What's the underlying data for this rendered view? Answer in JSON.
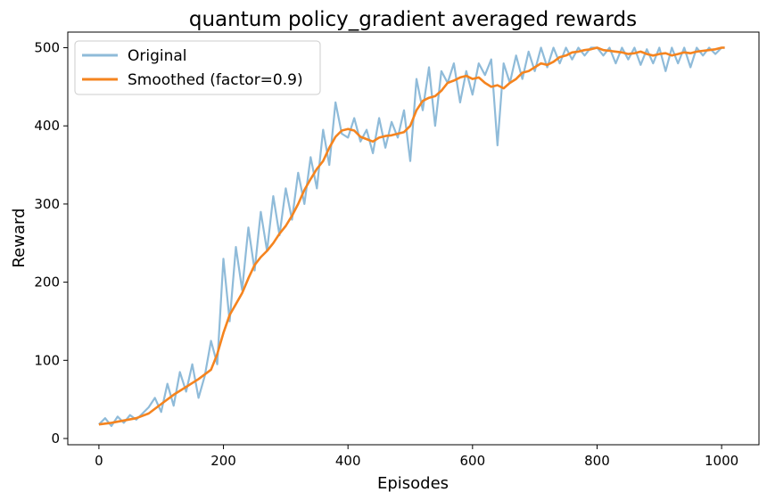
{
  "chart_data": {
    "type": "line",
    "title": "quantum policy_gradient averaged rewards",
    "xlabel": "Episodes",
    "ylabel": "Reward",
    "xlim": [
      -50,
      1060
    ],
    "ylim": [
      -8,
      520
    ],
    "xticks": [
      0,
      200,
      400,
      600,
      800,
      1000
    ],
    "yticks": [
      0,
      100,
      200,
      300,
      400,
      500
    ],
    "grid": false,
    "legend_position": "top-left",
    "series": [
      {
        "name": "Original",
        "color": "#8fbbd9",
        "x": [
          0,
          10,
          20,
          30,
          40,
          50,
          60,
          70,
          80,
          90,
          100,
          110,
          120,
          130,
          140,
          150,
          160,
          170,
          180,
          190,
          200,
          210,
          220,
          230,
          240,
          250,
          260,
          270,
          280,
          290,
          300,
          310,
          320,
          330,
          340,
          350,
          360,
          370,
          380,
          390,
          400,
          410,
          420,
          430,
          440,
          450,
          460,
          470,
          480,
          490,
          500,
          510,
          520,
          530,
          540,
          550,
          560,
          570,
          580,
          590,
          600,
          610,
          620,
          630,
          640,
          650,
          660,
          670,
          680,
          690,
          700,
          710,
          720,
          730,
          740,
          750,
          760,
          770,
          780,
          790,
          800,
          810,
          820,
          830,
          840,
          850,
          860,
          870,
          880,
          890,
          900,
          910,
          920,
          930,
          940,
          950,
          960,
          970,
          980,
          990,
          1000,
          1005
        ],
        "values": [
          18,
          26,
          16,
          28,
          20,
          30,
          24,
          32,
          40,
          52,
          34,
          70,
          42,
          85,
          60,
          95,
          52,
          80,
          125,
          95,
          230,
          150,
          245,
          190,
          270,
          215,
          290,
          240,
          310,
          260,
          320,
          280,
          340,
          300,
          360,
          320,
          395,
          350,
          430,
          390,
          385,
          410,
          380,
          395,
          365,
          410,
          372,
          405,
          385,
          420,
          355,
          460,
          420,
          475,
          400,
          470,
          455,
          480,
          430,
          470,
          440,
          480,
          465,
          485,
          375,
          480,
          455,
          490,
          460,
          495,
          470,
          500,
          475,
          500,
          480,
          500,
          485,
          500,
          490,
          500,
          500,
          490,
          500,
          480,
          500,
          485,
          500,
          478,
          498,
          480,
          500,
          470,
          500,
          480,
          500,
          475,
          500,
          490,
          500,
          492,
          500,
          500
        ]
      },
      {
        "name": "Smoothed (factor=0.9)",
        "color": "#f5841f",
        "x": [
          0,
          20,
          40,
          60,
          80,
          100,
          120,
          140,
          160,
          180,
          190,
          200,
          210,
          220,
          230,
          240,
          250,
          260,
          270,
          280,
          290,
          300,
          310,
          320,
          330,
          340,
          350,
          360,
          370,
          380,
          390,
          400,
          410,
          420,
          430,
          440,
          450,
          460,
          470,
          480,
          490,
          500,
          510,
          520,
          530,
          540,
          550,
          560,
          570,
          580,
          590,
          600,
          610,
          620,
          630,
          640,
          650,
          660,
          670,
          680,
          690,
          700,
          710,
          720,
          730,
          740,
          750,
          760,
          770,
          780,
          790,
          800,
          810,
          820,
          830,
          840,
          850,
          860,
          870,
          880,
          890,
          900,
          910,
          920,
          930,
          940,
          950,
          960,
          970,
          980,
          990,
          1000,
          1005
        ],
        "values": [
          18,
          20,
          23,
          26,
          32,
          44,
          56,
          66,
          76,
          88,
          108,
          135,
          158,
          172,
          186,
          205,
          222,
          232,
          240,
          250,
          262,
          272,
          285,
          300,
          318,
          332,
          345,
          355,
          372,
          386,
          394,
          396,
          394,
          386,
          383,
          380,
          385,
          387,
          388,
          390,
          392,
          400,
          420,
          432,
          436,
          438,
          445,
          455,
          458,
          462,
          464,
          460,
          462,
          455,
          450,
          452,
          448,
          455,
          460,
          468,
          470,
          475,
          480,
          478,
          482,
          488,
          490,
          494,
          495,
          497,
          498,
          500,
          497,
          496,
          495,
          494,
          492,
          493,
          495,
          492,
          490,
          492,
          493,
          490,
          492,
          494,
          493,
          495,
          496,
          497,
          498,
          500,
          500
        ]
      }
    ]
  }
}
